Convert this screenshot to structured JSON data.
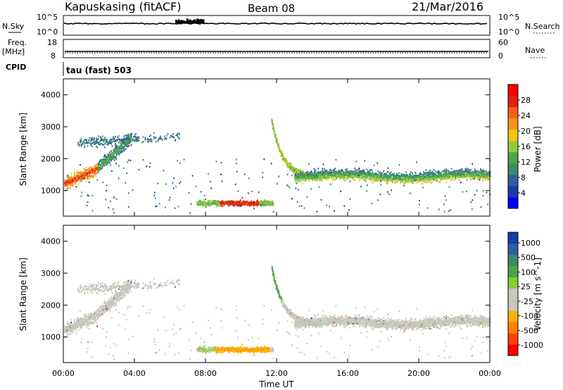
{
  "header": {
    "station": "Kapuskasing (fitACF)",
    "beam": "Beam 08",
    "date": "21/Mar/2016"
  },
  "aux_panels": {
    "nsky_label": "N.Sky",
    "nsky_ticks": [
      "10^5",
      "10^0"
    ],
    "nsearch_label": "N.Search",
    "nsearch_ticks": [
      "10^5",
      "10^0"
    ],
    "freq_label": "Freq.",
    "freq_unit": "[MHz]",
    "freq_ticks": [
      "18",
      "8"
    ],
    "nave_label": "Nave",
    "nave_ticks": [
      "60",
      "0"
    ],
    "cpid_label": "CPID",
    "cpid_text": "tau (fast) 503"
  },
  "colors": {
    "power_scale": [
      "#0000ff",
      "#1a3aa8",
      "#2f5f9e",
      "#3c8a68",
      "#49a64a",
      "#93c83e",
      "#f2c418",
      "#f29418",
      "#f26218",
      "#e02010",
      "#ff0000"
    ],
    "velocity_scale": [
      "#1a3aa8",
      "#2f5f9e",
      "#3c8a68",
      "#49a64a",
      "#88cc33",
      "#c8c8c0",
      "#c8c8c0",
      "#ffb000",
      "#ff8000",
      "#ff4000",
      "#ff0000"
    ],
    "grey_scatter": "#c6c6bd"
  },
  "chart_data": [
    {
      "type": "heatmap",
      "name": "power",
      "ylabel": "Slant Range [km]",
      "ylim": [
        200,
        4500
      ],
      "yticks": [
        1000,
        2000,
        3000,
        4000
      ],
      "xlim": [
        0,
        24
      ],
      "colorbar": {
        "label": "Power [dB]",
        "range": [
          0,
          32
        ],
        "ticks": [
          4,
          8,
          12,
          16,
          20,
          24,
          28
        ]
      }
    },
    {
      "type": "heatmap",
      "name": "velocity",
      "ylabel": "Slant Range [km]",
      "ylim": [
        200,
        4500
      ],
      "yticks": [
        1000,
        2000,
        3000,
        4000
      ],
      "xlim": [
        0,
        24
      ],
      "xlabel": "Time UT",
      "xticks": [
        "00:00",
        "04:00",
        "08:00",
        "12:00",
        "16:00",
        "20:00",
        "00:00"
      ],
      "colorbar": {
        "label": "Velocity [m s^-1]",
        "ticks": [
          "1000",
          "500",
          "100",
          "25",
          "-25",
          "-100",
          "-500",
          "-1000"
        ]
      }
    }
  ]
}
